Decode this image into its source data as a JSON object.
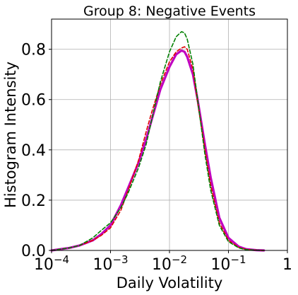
{
  "chart_data": {
    "type": "line",
    "title": "Group 8: Negative Events",
    "xlabel": "Daily Volatility",
    "ylabel": "Histogram Intensity",
    "x_scale": "log",
    "xlim": [
      0.0001,
      1
    ],
    "ylim": [
      0,
      0.92
    ],
    "grid": true,
    "x_ticks": [
      {
        "value": 0.0001,
        "base": "10",
        "exp": "−4"
      },
      {
        "value": 0.001,
        "base": "10",
        "exp": "−3"
      },
      {
        "value": 0.01,
        "base": "10",
        "exp": "−2"
      },
      {
        "value": 0.1,
        "base": "10",
        "exp": "−1"
      },
      {
        "value": 1,
        "base": "1",
        "exp": ""
      }
    ],
    "y_ticks": [
      {
        "value": 0.0,
        "label": "0.0"
      },
      {
        "value": 0.2,
        "label": "0.2"
      },
      {
        "value": 0.4,
        "label": "0.4"
      },
      {
        "value": 0.6,
        "label": "0.6"
      },
      {
        "value": 0.8,
        "label": "0.8"
      }
    ],
    "series": [
      {
        "style": "solid",
        "color": "#c000c0",
        "width": 3.2,
        "x": [
          0.0001,
          0.0002,
          0.0003,
          0.0005,
          0.0007,
          0.001,
          0.0015,
          0.002,
          0.003,
          0.004,
          0.005,
          0.007,
          0.01,
          0.013,
          0.016,
          0.018,
          0.02,
          0.025,
          0.03,
          0.04,
          0.05,
          0.07,
          0.1,
          0.15,
          0.2,
          0.3,
          0.4
        ],
        "y": [
          0.0,
          0.01,
          0.02,
          0.04,
          0.065,
          0.1,
          0.18,
          0.25,
          0.35,
          0.44,
          0.52,
          0.64,
          0.73,
          0.78,
          0.795,
          0.79,
          0.77,
          0.7,
          0.6,
          0.42,
          0.29,
          0.13,
          0.05,
          0.015,
          0.005,
          0.001,
          0.0
        ]
      },
      {
        "style": "dashed",
        "color": "#e00000",
        "width": 1.6,
        "x": [
          0.0001,
          0.0002,
          0.0003,
          0.0005,
          0.0007,
          0.001,
          0.0015,
          0.002,
          0.003,
          0.004,
          0.005,
          0.007,
          0.01,
          0.013,
          0.016,
          0.018,
          0.02,
          0.025,
          0.03,
          0.04,
          0.05,
          0.07,
          0.1,
          0.15,
          0.2,
          0.3,
          0.4
        ],
        "y": [
          0.0,
          0.01,
          0.02,
          0.04,
          0.06,
          0.09,
          0.16,
          0.24,
          0.36,
          0.47,
          0.55,
          0.66,
          0.75,
          0.79,
          0.805,
          0.81,
          0.8,
          0.72,
          0.59,
          0.4,
          0.26,
          0.11,
          0.04,
          0.012,
          0.004,
          0.001,
          0.0
        ]
      },
      {
        "style": "dashed",
        "color": "#008000",
        "width": 1.6,
        "x": [
          0.0001,
          0.0002,
          0.0003,
          0.0005,
          0.0007,
          0.001,
          0.0015,
          0.002,
          0.003,
          0.004,
          0.005,
          0.007,
          0.01,
          0.013,
          0.016,
          0.018,
          0.02,
          0.025,
          0.03,
          0.04,
          0.05,
          0.07,
          0.1,
          0.15,
          0.2,
          0.3,
          0.4
        ],
        "y": [
          0.0,
          0.01,
          0.02,
          0.05,
          0.08,
          0.11,
          0.17,
          0.23,
          0.33,
          0.42,
          0.52,
          0.67,
          0.79,
          0.85,
          0.87,
          0.865,
          0.84,
          0.74,
          0.6,
          0.38,
          0.24,
          0.1,
          0.035,
          0.01,
          0.003,
          0.001,
          0.0
        ]
      }
    ]
  }
}
